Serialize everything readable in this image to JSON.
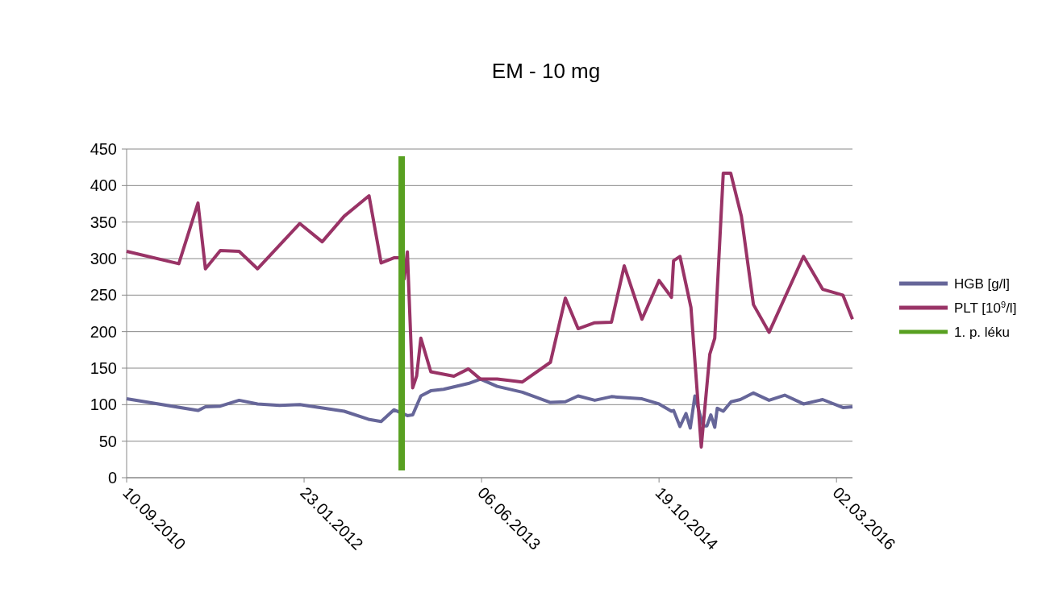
{
  "chart_data": {
    "type": "line",
    "title": "EM - 10 mg",
    "xlim": [
      "2010-09-10",
      "2016-04-16"
    ],
    "xticks": [
      {
        "value": "2010-09-10",
        "label": "10.09.2010"
      },
      {
        "value": "2012-01-23",
        "label": "23.01.2012"
      },
      {
        "value": "2013-06-06",
        "label": "06.06.2013"
      },
      {
        "value": "2014-10-19",
        "label": "19.10.2014"
      },
      {
        "value": "2016-03-02",
        "label": "02.03.2016"
      }
    ],
    "ylim": [
      0,
      450
    ],
    "yticks": [
      0,
      50,
      100,
      150,
      200,
      250,
      300,
      350,
      400,
      450
    ],
    "grid": "y",
    "legend": "right",
    "series": [
      {
        "name": "HGB [g/l]",
        "color": "#666699",
        "x": [
          "2010-09-10",
          "2011-03-30",
          "2011-04-20",
          "2011-06-01",
          "2011-07-24",
          "2011-09-14",
          "2011-11-15",
          "2012-01-11",
          "2012-05-15",
          "2012-07-22",
          "2012-08-27",
          "2012-10-02",
          "2012-11-09",
          "2012-11-24",
          "2012-12-17",
          "2013-01-14",
          "2013-02-19",
          "2013-04-30",
          "2013-06-03",
          "2013-07-20",
          "2013-09-29",
          "2013-12-17",
          "2014-01-28",
          "2014-03-05",
          "2014-04-21",
          "2014-06-07",
          "2014-09-01",
          "2014-10-19",
          "2014-11-23",
          "2014-11-29",
          "2014-12-17",
          "2015-01-03",
          "2015-01-15",
          "2015-01-28",
          "2015-02-20",
          "2015-03-03",
          "2015-03-14",
          "2015-03-25",
          "2015-04-01",
          "2015-04-18",
          "2015-05-10",
          "2015-06-05",
          "2015-07-12",
          "2015-08-25",
          "2015-10-08",
          "2015-11-30",
          "2016-01-23",
          "2016-03-20",
          "2016-04-16"
        ],
        "values": [
          108,
          92,
          97,
          98,
          106,
          101,
          99,
          100,
          91,
          80,
          77,
          93,
          85,
          86,
          112,
          119,
          121,
          129,
          135,
          125,
          117,
          103,
          104,
          112,
          106,
          111,
          108,
          101,
          91,
          92,
          70,
          88,
          68,
          112,
          71,
          71,
          86,
          69,
          95,
          91,
          104,
          107,
          116,
          106,
          113,
          101,
          107,
          96,
          97
        ]
      },
      {
        "name": "PLT [10$^{9}$/l]",
        "color": "#993366",
        "x": [
          "2010-09-10",
          "2011-02-04",
          "2011-03-30",
          "2011-04-20",
          "2011-06-01",
          "2011-07-24",
          "2011-09-14",
          "2012-01-11",
          "2012-03-14",
          "2012-05-15",
          "2012-07-24",
          "2012-08-27",
          "2012-10-02",
          "2012-10-21",
          "2012-10-31",
          "2012-11-09",
          "2012-11-24",
          "2012-12-05",
          "2012-12-17",
          "2013-01-14",
          "2013-03-20",
          "2013-04-30",
          "2013-06-03",
          "2013-07-20",
          "2013-09-29",
          "2013-12-17",
          "2014-01-28",
          "2014-03-05",
          "2014-04-19",
          "2014-06-07",
          "2014-07-13",
          "2014-09-01",
          "2014-10-19",
          "2014-11-23",
          "2014-11-29",
          "2014-12-17",
          "2015-01-17",
          "2015-02-15",
          "2015-03-11",
          "2015-03-25",
          "2015-04-18",
          "2015-05-09",
          "2015-06-08",
          "2015-07-12",
          "2015-08-25",
          "2015-11-30",
          "2016-01-23",
          "2016-03-20",
          "2016-04-16"
        ],
        "values": [
          310,
          293,
          376,
          286,
          311,
          310,
          286,
          348,
          323,
          358,
          386,
          294,
          301,
          301,
          272,
          309,
          123,
          139,
          191,
          145,
          139,
          149,
          135,
          135,
          131,
          158,
          246,
          204,
          212,
          213,
          290,
          217,
          270,
          247,
          297,
          303,
          233,
          42,
          169,
          191,
          417,
          417,
          358,
          237,
          199,
          303,
          258,
          250,
          217
        ]
      },
      {
        "name": "1. p. léku",
        "color": "#58a021",
        "x": [
          "2012-10-24",
          "2012-10-24"
        ],
        "values": [
          10,
          440
        ]
      }
    ]
  }
}
